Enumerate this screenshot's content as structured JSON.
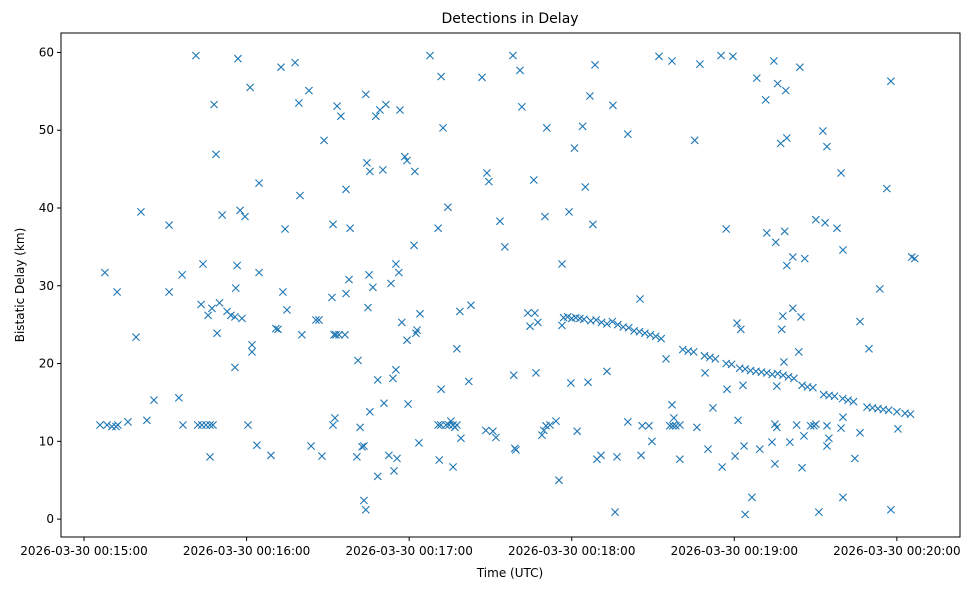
{
  "chart_data": {
    "type": "scatter",
    "title": "Detections in Delay",
    "xlabel": "Time (UTC)",
    "ylabel": "Bistatic Delay (km)",
    "x_units": "seconds after 2026-03-30 00:15:00",
    "xlim": [
      -8.5,
      323.3
    ],
    "ylim": [
      -2.3,
      62.5
    ],
    "grid": false,
    "marker": "x",
    "color": "#1f77b4",
    "x_ticks": [
      {
        "value": 0,
        "label": "2026-03-30 00:15:00"
      },
      {
        "value": 60,
        "label": "2026-03-30 00:16:00"
      },
      {
        "value": 120,
        "label": "2026-03-30 00:17:00"
      },
      {
        "value": 180,
        "label": "2026-03-30 00:18:00"
      },
      {
        "value": 240,
        "label": "2026-03-30 00:19:00"
      },
      {
        "value": 300,
        "label": "2026-03-30 00:20:00"
      }
    ],
    "y_ticks": [
      {
        "value": 0,
        "label": "0"
      },
      {
        "value": 10,
        "label": "10"
      },
      {
        "value": 20,
        "label": "20"
      },
      {
        "value": 30,
        "label": "30"
      },
      {
        "value": 40,
        "label": "40"
      },
      {
        "value": 50,
        "label": "50"
      },
      {
        "value": 60,
        "label": "60"
      }
    ],
    "points": [
      [
        7.7,
        31.7
      ],
      [
        5.9,
        12.1
      ],
      [
        8.5,
        12.1
      ],
      [
        10.3,
        11.9
      ],
      [
        11.8,
        11.9
      ],
      [
        12.5,
        12.1
      ],
      [
        12.2,
        29.2
      ],
      [
        16.2,
        12.5
      ],
      [
        19.2,
        23.4
      ],
      [
        21,
        39.5
      ],
      [
        23.2,
        12.7
      ],
      [
        25.8,
        15.3
      ],
      [
        31.4,
        37.8
      ],
      [
        31.4,
        29.2
      ],
      [
        35,
        15.6
      ],
      [
        36.2,
        31.4
      ],
      [
        36.5,
        12.1
      ],
      [
        41.3,
        59.6
      ],
      [
        42,
        12.1
      ],
      [
        43.5,
        12.1
      ],
      [
        45,
        12.1
      ],
      [
        46.5,
        12.1
      ],
      [
        47.6,
        12.1
      ],
      [
        43.2,
        27.6
      ],
      [
        43.9,
        32.8
      ],
      [
        45.8,
        26.2
      ],
      [
        46.5,
        8.0
      ],
      [
        47.2,
        27.1
      ],
      [
        48,
        53.3
      ],
      [
        48.7,
        46.9
      ],
      [
        49.1,
        23.9
      ],
      [
        50,
        27.8
      ],
      [
        51,
        39.1
      ],
      [
        52.8,
        26.7
      ],
      [
        54.2,
        26.2
      ],
      [
        55.7,
        26.0
      ],
      [
        56,
        29.7
      ],
      [
        55.7,
        19.5
      ],
      [
        56.5,
        32.6
      ],
      [
        56.8,
        59.2
      ],
      [
        57.6,
        39.7
      ],
      [
        58.3,
        25.8
      ],
      [
        59.4,
        38.9
      ],
      [
        60.5,
        12.1
      ],
      [
        61.3,
        55.5
      ],
      [
        62,
        22.4
      ],
      [
        62,
        21.5
      ],
      [
        63.8,
        9.5
      ],
      [
        64.6,
        43.2
      ],
      [
        64.6,
        31.7
      ],
      [
        69,
        8.2
      ],
      [
        70.8,
        24.5
      ],
      [
        71.6,
        24.4
      ],
      [
        72.7,
        58.1
      ],
      [
        73.4,
        29.2
      ],
      [
        74.2,
        37.3
      ],
      [
        74.9,
        26.9
      ],
      [
        77.9,
        58.7
      ],
      [
        79.3,
        53.5
      ],
      [
        79.7,
        41.6
      ],
      [
        80.4,
        23.7
      ],
      [
        83,
        55.1
      ],
      [
        83.8,
        9.4
      ],
      [
        85.6,
        25.6
      ],
      [
        86.7,
        25.6
      ],
      [
        87.8,
        8.1
      ],
      [
        88.6,
        48.7
      ],
      [
        91.5,
        28.5
      ],
      [
        91.9,
        37.9
      ],
      [
        92.3,
        23.7
      ],
      [
        93,
        23.7
      ],
      [
        94.1,
        23.7
      ],
      [
        91.9,
        12.1
      ],
      [
        92.6,
        13.0
      ],
      [
        93.4,
        53.1
      ],
      [
        94.8,
        51.8
      ],
      [
        96.3,
        23.7
      ],
      [
        96.7,
        29.0
      ],
      [
        96.7,
        42.4
      ],
      [
        97.8,
        30.8
      ],
      [
        98.2,
        37.4
      ],
      [
        100.7,
        8.0
      ],
      [
        101.1,
        20.4
      ],
      [
        101.9,
        11.8
      ],
      [
        102.6,
        9.3
      ],
      [
        103.3,
        9.4
      ],
      [
        103.3,
        2.4
      ],
      [
        104,
        1.2
      ],
      [
        104,
        54.6
      ],
      [
        104.4,
        45.8
      ],
      [
        104.8,
        27.2
      ],
      [
        105.2,
        31.4
      ],
      [
        105.5,
        13.8
      ],
      [
        105.5,
        44.7
      ],
      [
        106.6,
        29.8
      ],
      [
        107.7,
        51.8
      ],
      [
        108.4,
        17.9
      ],
      [
        108.4,
        5.5
      ],
      [
        109.2,
        52.6
      ],
      [
        110.3,
        44.9
      ],
      [
        110.7,
        14.9
      ],
      [
        111.4,
        53.3
      ],
      [
        112.5,
        8.2
      ],
      [
        113.3,
        30.3
      ],
      [
        114,
        18.1
      ],
      [
        114.4,
        6.2
      ],
      [
        115.1,
        19.2
      ],
      [
        115.1,
        32.8
      ],
      [
        115.5,
        7.8
      ],
      [
        116.2,
        31.7
      ],
      [
        116.6,
        52.6
      ],
      [
        117.3,
        25.3
      ],
      [
        118.4,
        46.6
      ],
      [
        119.2,
        46.1
      ],
      [
        119.2,
        23
      ],
      [
        119.6,
        14.8
      ],
      [
        121.8,
        35.2
      ],
      [
        122.1,
        44.7
      ],
      [
        122.5,
        23.9
      ],
      [
        122.9,
        24.3
      ],
      [
        124,
        26.4
      ],
      [
        123.6,
        9.8
      ],
      [
        127.7,
        59.6
      ],
      [
        130.7,
        37.4
      ],
      [
        130.7,
        12.1
      ],
      [
        131.7,
        12.1
      ],
      [
        131.1,
        7.6
      ],
      [
        131.8,
        16.7
      ],
      [
        131.8,
        56.9
      ],
      [
        132.5,
        50.3
      ],
      [
        133.6,
        12.1
      ],
      [
        134.7,
        12.1
      ],
      [
        135.4,
        12.6
      ],
      [
        136.2,
        12.1
      ],
      [
        136.9,
        11.8
      ],
      [
        137.6,
        12.1
      ],
      [
        134.3,
        40.1
      ],
      [
        136.2,
        6.7
      ],
      [
        137.6,
        21.9
      ],
      [
        138.7,
        26.7
      ],
      [
        139.1,
        10.4
      ],
      [
        142,
        17.7
      ],
      [
        142.8,
        27.5
      ],
      [
        146.9,
        56.8
      ],
      [
        148.3,
        11.4
      ],
      [
        150.9,
        11.3
      ],
      [
        148.7,
        44.5
      ],
      [
        149.4,
        43.4
      ],
      [
        152,
        10.5
      ],
      [
        153.5,
        38.3
      ],
      [
        155.3,
        35.0
      ],
      [
        158.3,
        59.6
      ],
      [
        158.6,
        18.5
      ],
      [
        159,
        9.1
      ],
      [
        159.4,
        8.9
      ],
      [
        160.9,
        57.7
      ],
      [
        161.6,
        53.0
      ],
      [
        163.8,
        26.5
      ],
      [
        164.6,
        24.8
      ],
      [
        166,
        43.6
      ],
      [
        166.4,
        26.5
      ],
      [
        166.8,
        18.8
      ],
      [
        167.5,
        25.3
      ],
      [
        169,
        10.8
      ],
      [
        169.7,
        11.4
      ],
      [
        170.5,
        12.0
      ],
      [
        172,
        12.1
      ],
      [
        170.1,
        38.9
      ],
      [
        170.8,
        50.3
      ],
      [
        174.2,
        12.6
      ],
      [
        175.3,
        5.0
      ],
      [
        176.4,
        32.8
      ],
      [
        176.4,
        24.9
      ],
      [
        177,
        25.9
      ],
      [
        178.5,
        26
      ],
      [
        180,
        25.8
      ],
      [
        181.5,
        25.9
      ],
      [
        183,
        25.8
      ],
      [
        184.5,
        25.7
      ],
      [
        187,
        25.5
      ],
      [
        189,
        25.6
      ],
      [
        191,
        25.3
      ],
      [
        193,
        25.1
      ],
      [
        195,
        25.4
      ],
      [
        197,
        25.0
      ],
      [
        199,
        24.7
      ],
      [
        201,
        24.6
      ],
      [
        203,
        24.2
      ],
      [
        205,
        24.1
      ],
      [
        207,
        23.9
      ],
      [
        209,
        23.7
      ],
      [
        211,
        23.5
      ],
      [
        213,
        23.2
      ],
      [
        221,
        21.8
      ],
      [
        223,
        21.6
      ],
      [
        225,
        21.5
      ],
      [
        229,
        21.0
      ],
      [
        231,
        20.8
      ],
      [
        233,
        20.6
      ],
      [
        237,
        20.0
      ],
      [
        239,
        19.9
      ],
      [
        242,
        19.4
      ],
      [
        244,
        19.3
      ],
      [
        246,
        19.1
      ],
      [
        248,
        19.0
      ],
      [
        250,
        18.9
      ],
      [
        252,
        18.8
      ],
      [
        254,
        18.6
      ],
      [
        256,
        18.7
      ],
      [
        258,
        18.5
      ],
      [
        260,
        18.3
      ],
      [
        262,
        18.1
      ],
      [
        265,
        17.2
      ],
      [
        267,
        17.0
      ],
      [
        269,
        16.9
      ],
      [
        273,
        16.0
      ],
      [
        275,
        15.9
      ],
      [
        277,
        15.8
      ],
      [
        280,
        15.5
      ],
      [
        282,
        15.3
      ],
      [
        284,
        15.1
      ],
      [
        289,
        14.4
      ],
      [
        291,
        14.3
      ],
      [
        293,
        14.2
      ],
      [
        295,
        14.1
      ],
      [
        297,
        14.0
      ],
      [
        300,
        13.8
      ],
      [
        303,
        13.6
      ],
      [
        305,
        13.5
      ],
      [
        179,
        39.5
      ],
      [
        181,
        47.7
      ],
      [
        182,
        11.3
      ],
      [
        179.7,
        17.5
      ],
      [
        184,
        50.5
      ],
      [
        185,
        42.7
      ],
      [
        186,
        17.6
      ],
      [
        186.7,
        54.4
      ],
      [
        187.8,
        37.9
      ],
      [
        188.6,
        58.4
      ],
      [
        189.3,
        7.7
      ],
      [
        190.8,
        8.2
      ],
      [
        193,
        19
      ],
      [
        195.2,
        53.2
      ],
      [
        196,
        0.9
      ],
      [
        196.7,
        8.0
      ],
      [
        200.7,
        49.5
      ],
      [
        200.7,
        12.5
      ],
      [
        205.2,
        28.3
      ],
      [
        205.6,
        8.2
      ],
      [
        206,
        12
      ],
      [
        208.5,
        12
      ],
      [
        209.6,
        10
      ],
      [
        212.2,
        59.5
      ],
      [
        214.8,
        20.6
      ],
      [
        217,
        58.9
      ],
      [
        216.2,
        12
      ],
      [
        217.3,
        12
      ],
      [
        218.4,
        12
      ],
      [
        219.9,
        12.1
      ],
      [
        217,
        14.7
      ],
      [
        217.7,
        13
      ],
      [
        219.9,
        7.7
      ],
      [
        225.4,
        48.7
      ],
      [
        226.2,
        11.8
      ],
      [
        227.3,
        58.5
      ],
      [
        229.2,
        18.8
      ],
      [
        230.3,
        9
      ],
      [
        232.1,
        14.3
      ],
      [
        235.1,
        59.6
      ],
      [
        235.5,
        6.7
      ],
      [
        237,
        37.3
      ],
      [
        237.3,
        16.7
      ],
      [
        239.5,
        59.5
      ],
      [
        240.3,
        8.1
      ],
      [
        241,
        25.2
      ],
      [
        241.4,
        12.7
      ],
      [
        242.4,
        24.4
      ],
      [
        243.2,
        17.2
      ],
      [
        243.6,
        9.4
      ],
      [
        244,
        0.6
      ],
      [
        246.5,
        2.8
      ],
      [
        248.3,
        56.7
      ],
      [
        249.4,
        9
      ],
      [
        251.6,
        53.9
      ],
      [
        252,
        36.8
      ],
      [
        253.9,
        9.9
      ],
      [
        254.6,
        58.9
      ],
      [
        255,
        7.1
      ],
      [
        255.3,
        35.6
      ],
      [
        255,
        12.2
      ],
      [
        255.7,
        11.8
      ],
      [
        256,
        56
      ],
      [
        255.7,
        17.1
      ],
      [
        257.1,
        48.3
      ],
      [
        257.5,
        24.4
      ],
      [
        257.9,
        26.1
      ],
      [
        258.3,
        20.2
      ],
      [
        258.6,
        37
      ],
      [
        259,
        55.1
      ],
      [
        259.4,
        49
      ],
      [
        259.4,
        32.6
      ],
      [
        260.5,
        9.9
      ],
      [
        261.6,
        33.7
      ],
      [
        261.6,
        27.1
      ],
      [
        263,
        12.1
      ],
      [
        263.8,
        21.5
      ],
      [
        264.2,
        58.1
      ],
      [
        264.6,
        26
      ],
      [
        265,
        6.6
      ],
      [
        265.7,
        10.7
      ],
      [
        266,
        33.5
      ],
      [
        268.2,
        12
      ],
      [
        269.4,
        12
      ],
      [
        270.1,
        12.2
      ],
      [
        270.1,
        38.5
      ],
      [
        271.2,
        0.9
      ],
      [
        272.7,
        49.9
      ],
      [
        273.5,
        38.1
      ],
      [
        274.2,
        47.9
      ],
      [
        274.2,
        9.4
      ],
      [
        274.9,
        10.4
      ],
      [
        274.2,
        12
      ],
      [
        277.9,
        37.4
      ],
      [
        279.4,
        44.5
      ],
      [
        280.1,
        34.6
      ],
      [
        280.1,
        13.1
      ],
      [
        280.1,
        2.8
      ],
      [
        279.4,
        11.7
      ],
      [
        284.5,
        7.8
      ],
      [
        286.4,
        11.1
      ],
      [
        286.4,
        25.4
      ],
      [
        289.7,
        21.9
      ],
      [
        293.7,
        29.6
      ],
      [
        296.3,
        42.5
      ],
      [
        297.8,
        56.3
      ],
      [
        297.8,
        1.2
      ],
      [
        300.4,
        11.6
      ],
      [
        305.5,
        33.7
      ],
      [
        306.6,
        33.5
      ]
    ]
  }
}
